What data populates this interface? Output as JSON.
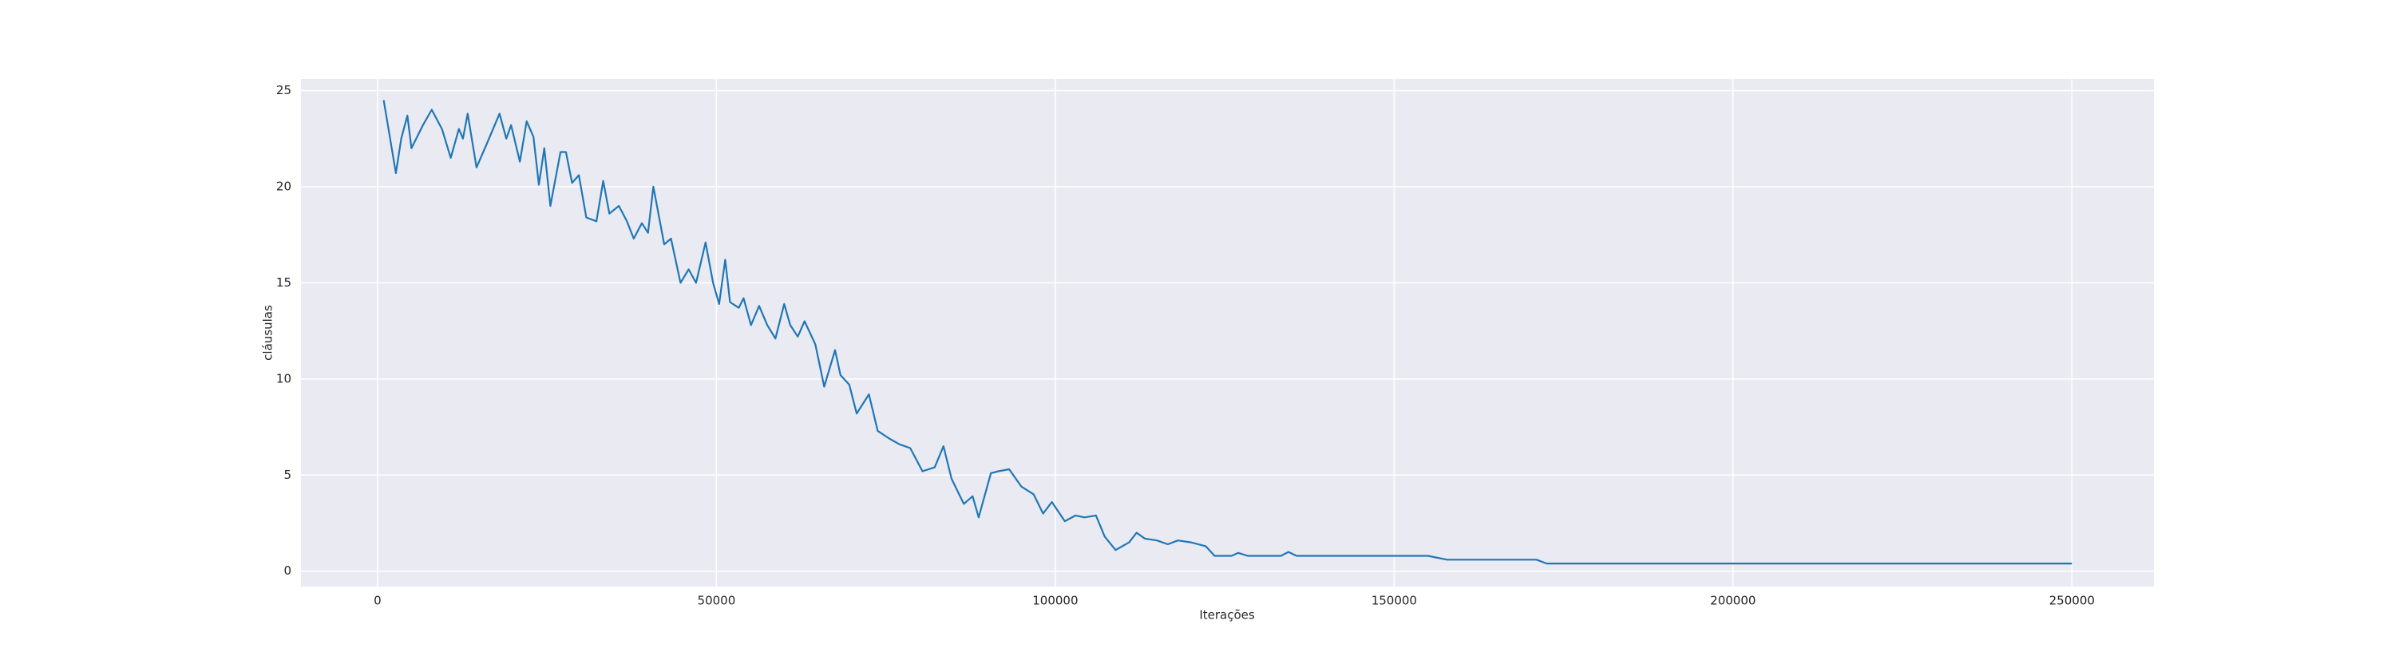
{
  "chart_data": {
    "type": "line",
    "xlabel": "Iterações",
    "ylabel": "cláusulas",
    "xlim": [
      -11300,
      262100
    ],
    "ylim": [
      -0.8,
      25.6
    ],
    "xticks": [
      0,
      50000,
      100000,
      150000,
      200000,
      250000
    ],
    "yticks": [
      0,
      5,
      10,
      15,
      20,
      25
    ],
    "grid": true,
    "series": [
      {
        "color": "#1f77b4",
        "x": [
          900,
          2700,
          3500,
          4400,
          5000,
          6700,
          8000,
          9500,
          10800,
          12000,
          12600,
          13300,
          14600,
          16200,
          18000,
          19000,
          19700,
          21000,
          22000,
          23000,
          23800,
          24600,
          25500,
          27000,
          27800,
          28700,
          29700,
          30800,
          32300,
          33300,
          34200,
          35600,
          36800,
          37800,
          39000,
          39900,
          40700,
          42300,
          43300,
          44700,
          45900,
          47000,
          48400,
          49500,
          50400,
          51300,
          52000,
          53300,
          54000,
          55100,
          56300,
          57500,
          58700,
          60000,
          60900,
          62000,
          63000,
          64600,
          65900,
          67500,
          68300,
          69600,
          70700,
          72500,
          73800,
          75500,
          77000,
          78600,
          80400,
          82200,
          83500,
          84700,
          86500,
          87800,
          88700,
          90500,
          91600,
          93200,
          95000,
          96800,
          98200,
          99500,
          101400,
          103000,
          104300,
          106000,
          107300,
          108900,
          110900,
          112000,
          113200,
          115000,
          116600,
          118100,
          120000,
          122200,
          123500,
          126000,
          127000,
          128400,
          133300,
          134400,
          135600,
          155000,
          157800,
          171000,
          172500,
          250000
        ],
        "values": [
          24.5,
          20.7,
          22.5,
          23.7,
          22,
          23.2,
          24,
          23,
          21.5,
          23,
          22.5,
          23.8,
          21,
          22.3,
          23.8,
          22.5,
          23.2,
          21.3,
          23.4,
          22.6,
          20.1,
          22,
          19,
          21.8,
          21.8,
          20.2,
          20.6,
          18.4,
          18.2,
          20.3,
          18.6,
          19,
          18.2,
          17.3,
          18.1,
          17.6,
          20,
          17,
          17.3,
          15,
          15.7,
          15,
          17.1,
          15,
          13.9,
          16.2,
          14,
          13.7,
          14.2,
          12.8,
          13.8,
          12.8,
          12.1,
          13.9,
          12.8,
          12.2,
          13,
          11.8,
          9.6,
          11.5,
          10.2,
          9.7,
          8.2,
          9.2,
          7.3,
          6.9,
          6.6,
          6.4,
          5.2,
          5.4,
          6.5,
          4.8,
          3.5,
          3.9,
          2.8,
          5.1,
          5.2,
          5.3,
          4.4,
          4,
          3,
          3.6,
          2.6,
          2.9,
          2.8,
          2.9,
          1.8,
          1.1,
          1.5,
          2.0,
          1.7,
          1.6,
          1.4,
          1.6,
          1.5,
          1.3,
          0.8,
          0.8,
          0.95,
          0.8,
          0.8,
          1.0,
          0.8,
          0.8,
          0.6,
          0.6,
          0.4,
          0.4
        ]
      }
    ]
  }
}
